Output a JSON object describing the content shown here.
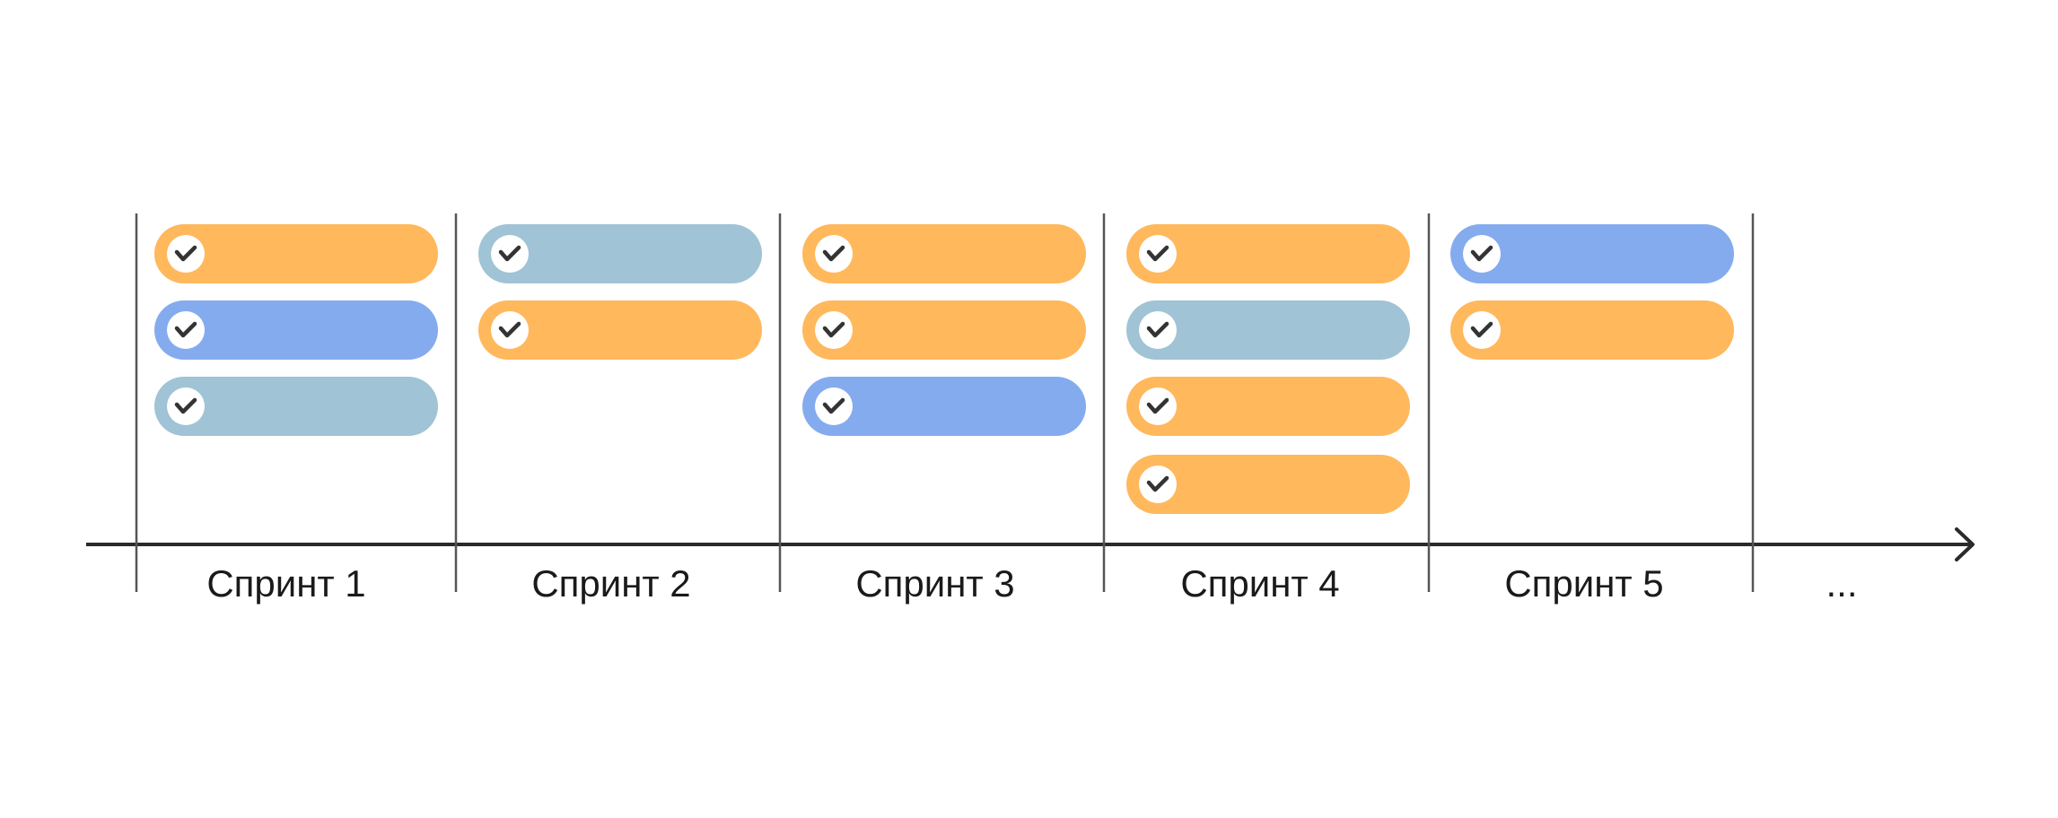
{
  "colors": {
    "orange": "#FFB85C",
    "blue": "#85ABEF",
    "gray": "#A0C3D6",
    "check_circle": "#ffffff",
    "check_mark": "#333333",
    "axis": "#2a2a2a",
    "divider": "#555555"
  },
  "sprints": [
    {
      "label": "Спринт 1",
      "tasks": [
        "orange",
        "blue",
        "gray"
      ]
    },
    {
      "label": "Спринт 2",
      "tasks": [
        "gray",
        "orange"
      ]
    },
    {
      "label": "Спринт 3",
      "tasks": [
        "orange",
        "orange",
        "blue"
      ]
    },
    {
      "label": "Спринт 4",
      "tasks": [
        "orange",
        "gray",
        "orange",
        "orange"
      ]
    },
    {
      "label": "Спринт 5",
      "tasks": [
        "blue",
        "orange"
      ]
    }
  ],
  "continuation_label": "...",
  "icons": {
    "task": "check-icon",
    "axis_end": "arrow-right-icon"
  }
}
